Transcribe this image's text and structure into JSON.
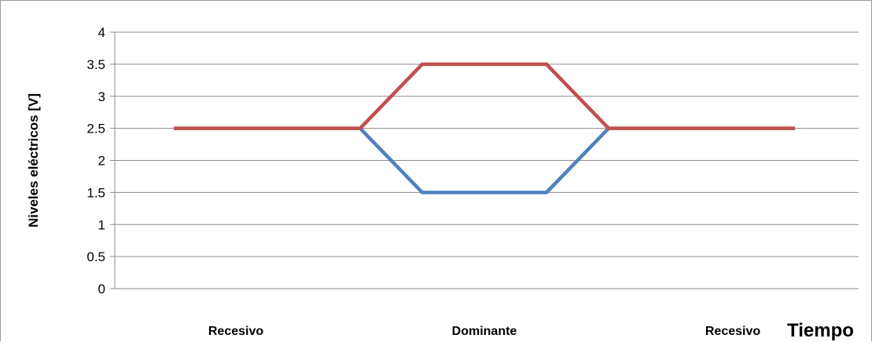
{
  "chart_data": {
    "type": "line",
    "title": "",
    "xlabel": "Tiempo",
    "ylabel": "Niveles eléctricos [V]",
    "ylim": [
      0,
      4
    ],
    "yticks": [
      "0",
      "0.5",
      "1",
      "1.5",
      "2",
      "2.5",
      "3",
      "3.5",
      "4"
    ],
    "grid": true,
    "legend": "none",
    "x_points": 11,
    "category_labels": [
      {
        "label": "Recesivo",
        "at": 1
      },
      {
        "label": "Dominante",
        "at": 5
      },
      {
        "label": "Recesivo",
        "at": 9
      }
    ],
    "series": [
      {
        "color": "#4f81bd",
        "values": [
          2.5,
          2.5,
          2.5,
          2.5,
          1.5,
          1.5,
          1.5,
          2.5,
          2.5,
          2.5,
          2.5
        ]
      },
      {
        "color": "#c0504d",
        "values": [
          2.5,
          2.5,
          2.5,
          2.5,
          3.5,
          3.5,
          3.5,
          2.5,
          2.5,
          2.5,
          2.5
        ]
      }
    ]
  }
}
